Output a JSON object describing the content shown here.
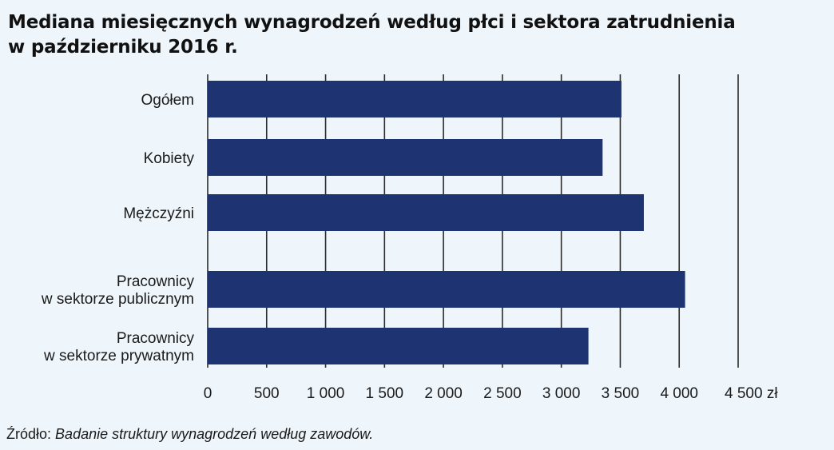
{
  "title_lines": [
    "Mediana miesięcznych wynagrodzeń według płci i sektora zatrudnienia",
    "w październiku 2016 r."
  ],
  "source": {
    "prefix": "Źródło:",
    "text": "Badanie struktury wynagrodzeń według zawodów."
  },
  "colors": {
    "bar": "#1e3472",
    "grid": "#2b2b2b",
    "background": "#eef5fb"
  },
  "chart_data": {
    "type": "bar",
    "orientation": "horizontal",
    "title": "Mediana miesięcznych wynagrodzeń według płci i sektora zatrudnienia w październiku 2016 r.",
    "categories": [
      [
        "Ogółem"
      ],
      [
        "Kobiety"
      ],
      [
        "Mężczyźni"
      ],
      [
        "Pracownicy",
        "w sektorze publicznym"
      ],
      [
        "Pracownicy",
        "w sektorze prywatnym"
      ]
    ],
    "values": [
      3510,
      3350,
      3700,
      4050,
      3230
    ],
    "xlim": [
      0,
      4500
    ],
    "x_ticks": [
      0,
      500,
      1000,
      1500,
      2000,
      2500,
      3000,
      3500,
      4000,
      4500
    ],
    "x_tick_labels": [
      "0",
      "500",
      "1 000",
      "1 500",
      "2 000",
      "2 500",
      "3 000",
      "3 500",
      "4 000",
      "4 500 zł"
    ],
    "grid": true,
    "legend": false
  }
}
